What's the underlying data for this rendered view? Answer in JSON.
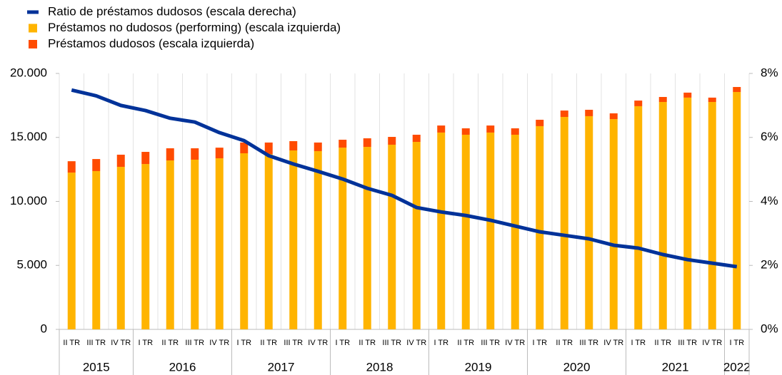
{
  "chart_data": {
    "type": "bar",
    "groups": [
      {
        "label": "2015",
        "categories": [
          "II TR",
          "III TR",
          "IV TR"
        ]
      },
      {
        "label": "2016",
        "categories": [
          "I TR",
          "II TR",
          "III TR",
          "IV TR"
        ]
      },
      {
        "label": "2017",
        "categories": [
          "I TR",
          "II TR",
          "III TR",
          "IV TR"
        ]
      },
      {
        "label": "2018",
        "categories": [
          "I TR",
          "II TR",
          "III TR",
          "IV TR"
        ]
      },
      {
        "label": "2019",
        "categories": [
          "I TR",
          "II TR",
          "III TR",
          "IV TR"
        ]
      },
      {
        "label": "2020",
        "categories": [
          "I TR",
          "II TR",
          "III TR",
          "IV TR"
        ]
      },
      {
        "label": "2021",
        "categories": [
          "I TR",
          "II TR",
          "III TR",
          "IV TR"
        ]
      },
      {
        "label": "2022",
        "categories": [
          "I TR"
        ]
      }
    ],
    "series": [
      {
        "name": "Ratio de préstamos dudosos (escala derecha)",
        "type": "line",
        "axis": "y2",
        "color": "#003299",
        "values": [
          7.48,
          7.3,
          7.0,
          6.84,
          6.6,
          6.48,
          6.15,
          5.9,
          5.43,
          5.17,
          4.94,
          4.7,
          4.41,
          4.19,
          3.81,
          3.67,
          3.56,
          3.41,
          3.23,
          3.05,
          2.94,
          2.83,
          2.63,
          2.54,
          2.34,
          2.18,
          2.07,
          1.96
        ]
      },
      {
        "name": "Préstamos no dudosos (performing) (escala izquierda)",
        "type": "bar",
        "color": "#FFB400",
        "values": [
          12250,
          12370,
          12700,
          12920,
          13200,
          13260,
          13370,
          13760,
          13700,
          13980,
          13930,
          14200,
          14260,
          14430,
          14650,
          15380,
          15210,
          15380,
          15210,
          15880,
          16600,
          16660,
          16430,
          17440,
          17770,
          18110,
          17770,
          18550
        ]
      },
      {
        "name": "Préstamos dudosos (escala izquierda)",
        "type": "bar",
        "color": "#FF4B00",
        "values": [
          890,
          940,
          950,
          950,
          950,
          890,
          830,
          840,
          900,
          730,
          670,
          620,
          670,
          610,
          560,
          550,
          500,
          550,
          500,
          500,
          500,
          500,
          450,
          440,
          390,
          390,
          340,
          390
        ]
      }
    ],
    "ylim": [
      0,
      20000
    ],
    "yticks": [
      0,
      {
        "value": 5000,
        "label": "5.000"
      },
      {
        "value": 10000,
        "label": "10.000"
      },
      {
        "value": 15000,
        "label": "15.000"
      },
      {
        "value": 20000,
        "label": "20.000"
      }
    ],
    "y2lim": [
      0,
      8
    ],
    "y2ticks": [
      {
        "value": 0,
        "label": "0%"
      },
      {
        "value": 2,
        "label": "2%"
      },
      {
        "value": 4,
        "label": "4%"
      },
      {
        "value": 6,
        "label": "6%"
      },
      {
        "value": 8,
        "label": "8%"
      }
    ],
    "grid": true
  }
}
